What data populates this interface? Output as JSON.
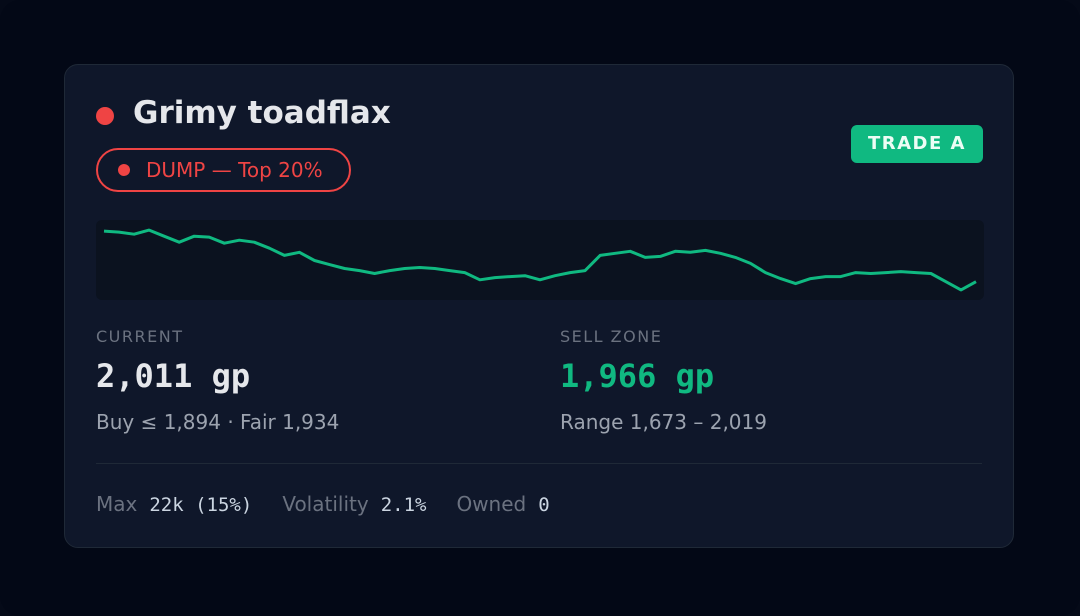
{
  "card": {
    "title": "Grimy toadflax",
    "signal": "DUMP — Top 20%",
    "grade": "TRADE A",
    "sparkline": {
      "type": "line",
      "color": "#10b981",
      "ylim": [
        1640,
        2051
      ],
      "values": [
        1994,
        1989,
        1978,
        1999,
        1968,
        1937,
        1968,
        1963,
        1932,
        1947,
        1937,
        1906,
        1869,
        1885,
        1843,
        1822,
        1802,
        1791,
        1776,
        1791,
        1802,
        1807,
        1802,
        1791,
        1781,
        1744,
        1755,
        1760,
        1765,
        1744,
        1765,
        1781,
        1791,
        1869,
        1880,
        1890,
        1859,
        1864,
        1890,
        1885,
        1895,
        1880,
        1859,
        1828,
        1781,
        1750,
        1724,
        1750,
        1760,
        1760,
        1781,
        1776,
        1781,
        1786,
        1781,
        1776,
        1734,
        1692,
        1734
      ]
    },
    "current": {
      "label": "CURRENT",
      "value": "2,011 gp",
      "detail": "Buy ≤ 1,894 · Fair 1,934"
    },
    "sell_zone": {
      "label": "SELL ZONE",
      "value": "1,966 gp",
      "detail": "Range 1,673 – 2,019"
    },
    "footer": [
      {
        "label": "Max",
        "value": "22k (15%)"
      },
      {
        "label": "Volatility",
        "value": "2.1%"
      },
      {
        "label": "Owned",
        "value": "0"
      }
    ]
  }
}
